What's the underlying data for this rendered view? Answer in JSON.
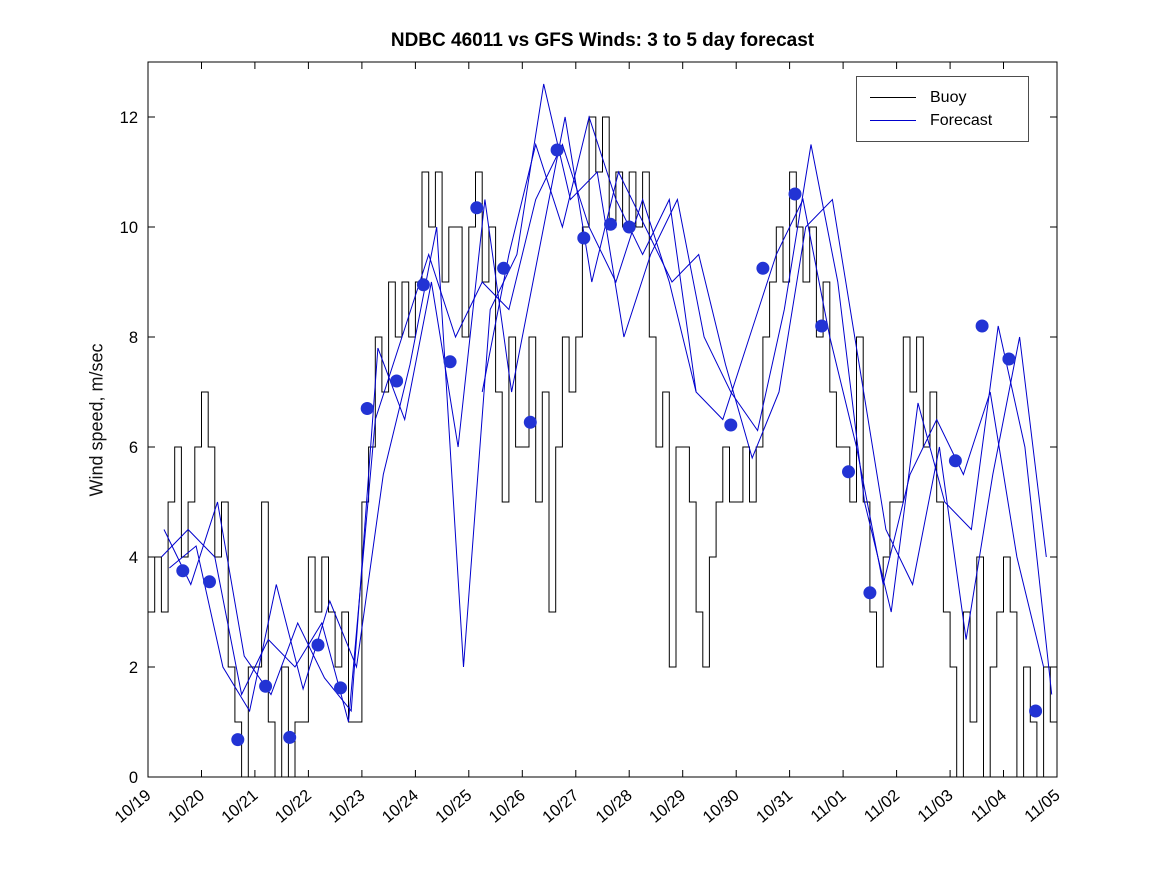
{
  "figure": {
    "title": "NDBC 46011 vs GFS Winds: 3 to 5 day forecast",
    "ylabel": "Wind speed, m/sec",
    "legend": [
      {
        "label": "Buoy",
        "color": "#000000"
      },
      {
        "label": "Forecast",
        "color": "#0000cd"
      }
    ]
  },
  "chart_data": {
    "type": "line",
    "title": "NDBC 46011 vs GFS Winds: 3 to 5 day forecast",
    "xlabel": "",
    "ylabel": "Wind speed, m/sec",
    "xlim": [
      0,
      17
    ],
    "ylim": [
      0,
      13
    ],
    "yticks": [
      0,
      2,
      4,
      6,
      8,
      10,
      12
    ],
    "x_tick_labels": [
      "10/19",
      "10/20",
      "10/21",
      "10/22",
      "10/23",
      "10/24",
      "10/25",
      "10/26",
      "10/27",
      "10/28",
      "10/29",
      "10/30",
      "10/31",
      "11/01",
      "11/02",
      "11/03",
      "11/04",
      "11/05"
    ],
    "x_tick_rotation": 40,
    "grid": false,
    "legend": [
      "Buoy",
      "Forecast"
    ],
    "legend_position": "top-right",
    "series": [
      {
        "name": "Buoy",
        "color": "#000000",
        "style": "stairs",
        "t0": 0,
        "dt": 0.125,
        "values": [
          3,
          4,
          3,
          5,
          6,
          4,
          5,
          6,
          7,
          6,
          4,
          5,
          2,
          1,
          0,
          2,
          2,
          5,
          1,
          0,
          2,
          0,
          1,
          1,
          4,
          3,
          4,
          3,
          2,
          3,
          1,
          1,
          5,
          6,
          8,
          7,
          9,
          8,
          9,
          8,
          9,
          11,
          10,
          11,
          9,
          10,
          10,
          8,
          10,
          11,
          9,
          10,
          7,
          5,
          8,
          6,
          6,
          8,
          5,
          7,
          3,
          6,
          8,
          7,
          8,
          10,
          12,
          11,
          12,
          10,
          11,
          10,
          11,
          10,
          11,
          8,
          6,
          7,
          2,
          6,
          6,
          5,
          3,
          2,
          4,
          5,
          6,
          5,
          5,
          6,
          5,
          6,
          8,
          9,
          10,
          9,
          11,
          10,
          9,
          10,
          8,
          9,
          7,
          6,
          6,
          5,
          8,
          5,
          3,
          2,
          4,
          5,
          5,
          8,
          7,
          8,
          6,
          7,
          5,
          3,
          2,
          0,
          3,
          1,
          4,
          0,
          2,
          3,
          4,
          3,
          0,
          2,
          1,
          0,
          2,
          1,
          2
        ]
      },
      {
        "name": "Forecast",
        "color": "#0000cd",
        "style": "line",
        "t0": 0.25,
        "dt": 0.5,
        "values": [
          4.0,
          4.5,
          4.0,
          1.5,
          2.5,
          2.0,
          2.8,
          1.0,
          6.5,
          8.0,
          9.5,
          8.0,
          9.0,
          8.5,
          10.5,
          11.5,
          10.0,
          9.0,
          10.5,
          9.0,
          7.0,
          6.5,
          8.0,
          9.5,
          10.5,
          8.0,
          6.0,
          3.5,
          5.5,
          6.5,
          5.5,
          7.0,
          4.0,
          2.0
        ]
      },
      {
        "name": "Forecast",
        "color": "#0000cd",
        "style": "line",
        "t0": 0.4,
        "dt": 0.5,
        "values": [
          3.8,
          4.2,
          2.0,
          1.2,
          3.5,
          1.6,
          3.2,
          2.0,
          5.5,
          7.5,
          10.0,
          2.0,
          8.5,
          9.5,
          12.6,
          10.5,
          11.0,
          8.0,
          9.5,
          10.5,
          8.0,
          7.0,
          6.3,
          8.5,
          11.5,
          9.0,
          5.0,
          3.0,
          6.8,
          5.0,
          4.5,
          8.2,
          6.0,
          1.5
        ]
      },
      {
        "name": "Forecast",
        "color": "#0000cd",
        "style": "line",
        "t0": 0.3,
        "dt": 0.5,
        "values": [
          4.5,
          3.5,
          5.0,
          2.2,
          1.5,
          2.8,
          1.8,
          1.2,
          7.8,
          6.5,
          9.0,
          6.0,
          10.5,
          7.0,
          9.5,
          12.0,
          9.0,
          11.0,
          10.0,
          9.0,
          9.5,
          7.5,
          5.8,
          7.0,
          10.0,
          10.5,
          7.5,
          4.5,
          3.5,
          6.0,
          2.5,
          5.5,
          8.0,
          4.0
        ]
      },
      {
        "name": "Forecast",
        "color": "#0000cd",
        "style": "line",
        "t0": 6.25,
        "dt": 0.5,
        "values": [
          7.0,
          9.5,
          11.5,
          10.0,
          12.0,
          10.5,
          9.5,
          10.5,
          7.0
        ]
      }
    ],
    "markers": {
      "name": "Forecast markers",
      "color": "#2233d4",
      "points": [
        [
          0.65,
          3.75
        ],
        [
          1.15,
          3.55
        ],
        [
          1.68,
          0.68
        ],
        [
          2.2,
          1.65
        ],
        [
          2.65,
          0.72
        ],
        [
          3.18,
          2.4
        ],
        [
          3.6,
          1.62
        ],
        [
          4.1,
          6.7
        ],
        [
          4.65,
          7.2
        ],
        [
          5.15,
          8.95
        ],
        [
          5.65,
          7.55
        ],
        [
          6.15,
          10.35
        ],
        [
          6.65,
          9.25
        ],
        [
          7.15,
          6.45
        ],
        [
          7.65,
          11.4
        ],
        [
          8.15,
          9.8
        ],
        [
          8.65,
          10.05
        ],
        [
          9.0,
          10.0
        ],
        [
          10.9,
          6.4
        ],
        [
          11.5,
          9.25
        ],
        [
          12.1,
          10.6
        ],
        [
          12.6,
          8.2
        ],
        [
          13.1,
          5.55
        ],
        [
          13.5,
          3.35
        ],
        [
          15.1,
          5.75
        ],
        [
          15.6,
          8.2
        ],
        [
          16.1,
          7.6
        ],
        [
          16.6,
          1.2
        ]
      ]
    }
  }
}
